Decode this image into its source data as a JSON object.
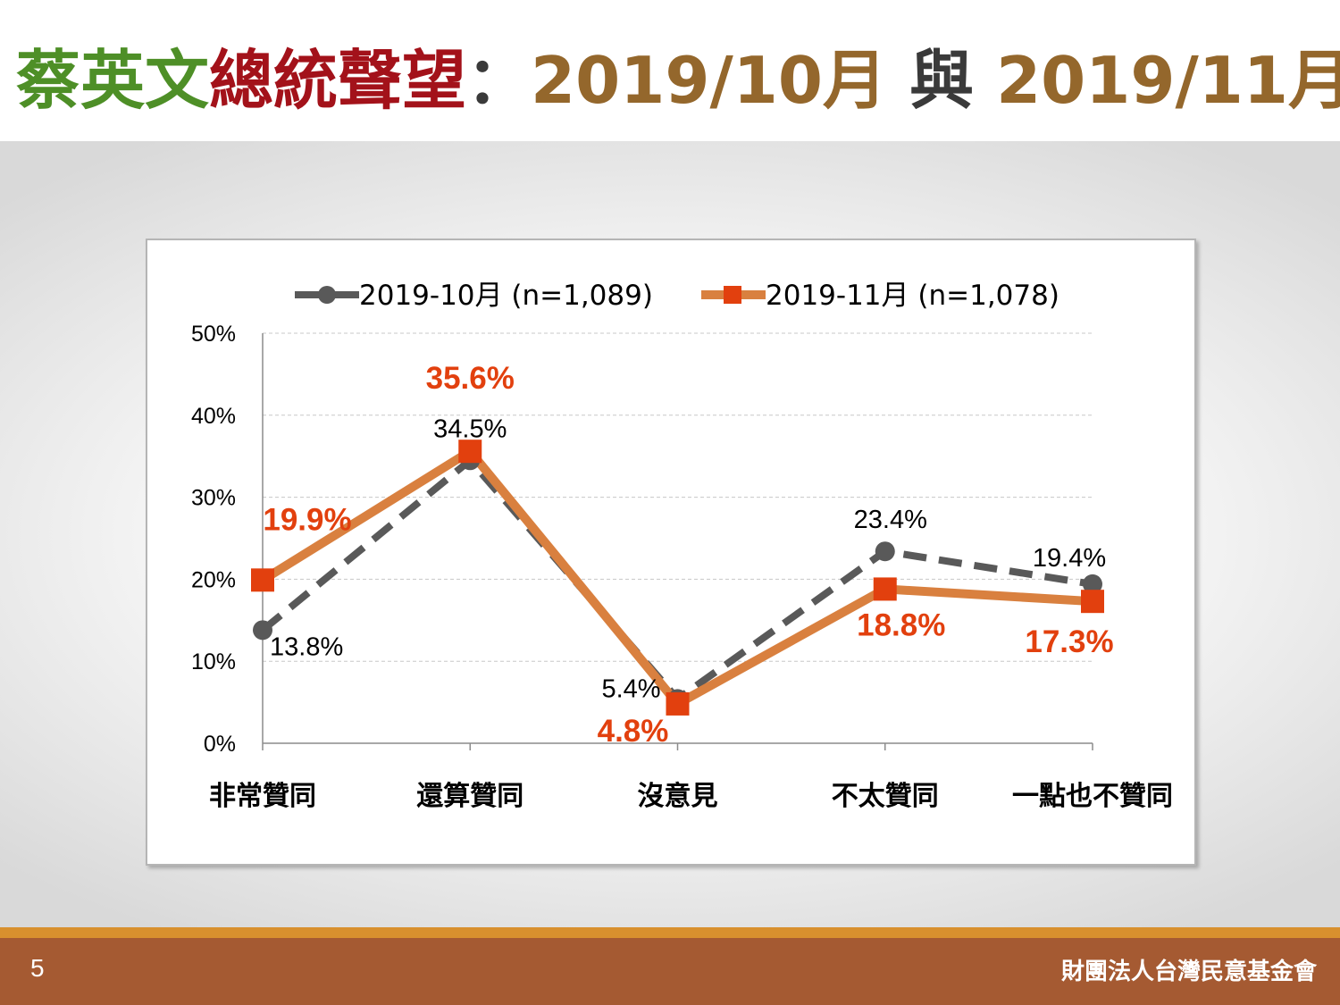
{
  "title": {
    "part1": "蔡英文",
    "part2": "總統聲望",
    "part3": "：",
    "part4": "2019/10月",
    "part5": " 與 ",
    "part6": "2019/11月",
    "colors": {
      "part1": "#4e8f27",
      "part2": "#a3121a",
      "part3": "#3a3a3a",
      "part4": "#94672c",
      "part5": "#3a3a3a",
      "part6": "#94672c"
    }
  },
  "footer": {
    "page_number": "5",
    "org": "財團法人台灣民意基金會"
  },
  "chart_data": {
    "type": "line",
    "categories": [
      "非常贊同",
      "還算贊同",
      "沒意見",
      "不太贊同",
      "一點也不贊同"
    ],
    "ylim": [
      0,
      50
    ],
    "yticks": [
      "0%",
      "10%",
      "20%",
      "30%",
      "40%",
      "50%"
    ],
    "grid": true,
    "legend_position": "top",
    "series": [
      {
        "name": "2019-10月 (n=1,089)",
        "values": [
          13.8,
          34.5,
          5.4,
          23.4,
          19.4
        ],
        "labels": [
          "13.8%",
          "34.5%",
          "5.4%",
          "23.4%",
          "19.4%"
        ],
        "color": "#595959",
        "style": "dashed",
        "marker": "circle"
      },
      {
        "name": "2019-11月 (n=1,078)",
        "values": [
          19.9,
          35.6,
          4.8,
          18.8,
          17.3
        ],
        "labels": [
          "19.9%",
          "35.6%",
          "4.8%",
          "18.8%",
          "17.3%"
        ],
        "color": "#d9803f",
        "marker_color": "#e2400e",
        "label_color": "#e2400e",
        "style": "solid",
        "marker": "square"
      }
    ]
  }
}
